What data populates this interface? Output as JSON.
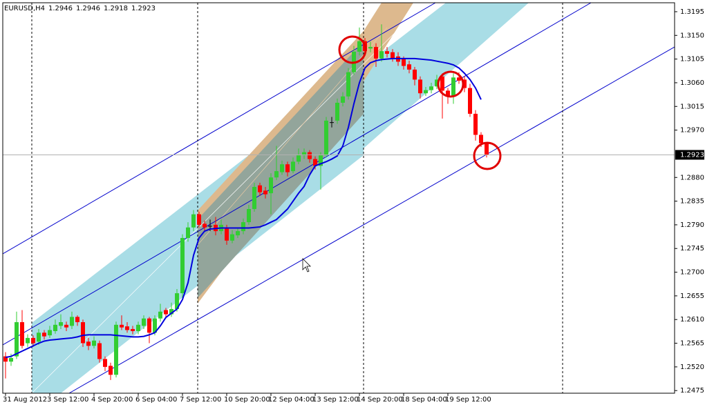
{
  "chart_data": {
    "type": "candlestick",
    "symbol": "EURUSD,H4",
    "categories": [
      "31 Aug 2012",
      null,
      null,
      null,
      null,
      null,
      null,
      null,
      "3 Sep 12:00",
      null,
      null,
      null,
      null,
      null,
      null,
      null,
      "4 Sep 20:00",
      null,
      null,
      null,
      null,
      null,
      null,
      null,
      "6 Sep 04:00",
      null,
      null,
      null,
      null,
      null,
      null,
      null,
      "7 Sep 12:00",
      null,
      null,
      null,
      null,
      null,
      null,
      null,
      "10 Sep 20:00",
      null,
      null,
      null,
      null,
      null,
      null,
      null,
      "12 Sep 04:00",
      null,
      null,
      null,
      null,
      null,
      null,
      null,
      "13 Sep 12:00",
      null,
      null,
      null,
      null,
      null,
      null,
      null,
      "14 Sep 20:00",
      null,
      null,
      null,
      null,
      null,
      null,
      null,
      "18 Sep 04:00",
      null,
      null,
      null,
      null,
      null,
      null,
      null,
      "19 Sep 12:00",
      null,
      null,
      null,
      null,
      null,
      null,
      null
    ],
    "open": [
      1.254,
      1.253,
      1.254,
      1.2605,
      1.2565,
      1.2575,
      1.2568,
      1.2585,
      1.258,
      1.2588,
      1.2598,
      1.26,
      1.2598,
      1.2615,
      1.2605,
      1.2568,
      1.256,
      1.2565,
      1.2535,
      1.2522,
      1.2505,
      1.26,
      1.2597,
      1.2592,
      1.2588,
      1.2598,
      1.2612,
      1.2585,
      1.2612,
      1.2628,
      1.262,
      1.263,
      1.266,
      1.2765,
      1.2785,
      1.281,
      1.2792,
      1.2788,
      1.279,
      1.2778,
      1.2785,
      1.276,
      1.277,
      1.2778,
      1.2795,
      1.282,
      1.2865,
      1.2855,
      1.285,
      1.288,
      1.289,
      1.2905,
      1.2892,
      1.291,
      1.2922,
      1.2928,
      1.2915,
      1.2902,
      1.2922,
      1.2985,
      1.2988,
      1.3022,
      1.3034,
      1.308,
      1.3119,
      1.3139,
      1.3125,
      1.3128,
      1.3106,
      1.312,
      1.3118,
      1.311,
      1.3105,
      1.3095,
      1.3085,
      1.3066,
      1.304,
      1.3046,
      1.3053,
      1.3072,
      1.3045,
      1.3034,
      1.307,
      1.3066,
      1.305,
      1.3001,
      1.2961,
      1.2946
    ],
    "high": [
      1.2548,
      1.2545,
      1.2625,
      1.2628,
      1.2582,
      1.258,
      1.2592,
      1.259,
      1.2598,
      1.261,
      1.262,
      1.2606,
      1.2625,
      1.2618,
      1.261,
      1.2575,
      1.2578,
      1.257,
      1.254,
      1.2528,
      1.2606,
      1.2618,
      1.2605,
      1.2598,
      1.2606,
      1.2618,
      1.2615,
      1.2618,
      1.264,
      1.2632,
      1.2642,
      1.2668,
      1.2772,
      1.2795,
      1.2818,
      1.2815,
      1.2798,
      1.28,
      1.2805,
      1.28,
      1.279,
      1.278,
      1.2785,
      1.2802,
      1.2828,
      1.287,
      1.287,
      1.2862,
      1.2888,
      1.294,
      1.2912,
      1.291,
      1.2918,
      1.2935,
      1.2935,
      1.2932,
      1.292,
      1.2928,
      1.2995,
      1.2995,
      1.303,
      1.3042,
      1.3088,
      1.313,
      1.3165,
      1.3145,
      1.3138,
      1.3135,
      1.3171,
      1.3128,
      1.3124,
      1.3118,
      1.311,
      1.3102,
      1.309,
      1.3072,
      1.3052,
      1.306,
      1.3075,
      1.3078,
      1.305,
      1.3078,
      1.308,
      1.3072,
      1.3058,
      1.3008,
      1.2966,
      1.2946
    ],
    "low": [
      1.2498,
      1.2522,
      1.2535,
      1.2555,
      1.2558,
      1.2558,
      1.2562,
      1.2572,
      1.2575,
      1.2583,
      1.2592,
      1.2588,
      1.2592,
      1.2598,
      1.2558,
      1.2552,
      1.2555,
      1.2528,
      1.2512,
      1.2495,
      1.25,
      1.259,
      1.2585,
      1.2582,
      1.2582,
      1.2592,
      1.2565,
      1.258,
      1.2606,
      1.2612,
      1.2615,
      1.2625,
      1.2648,
      1.2758,
      1.2778,
      1.2785,
      1.2778,
      1.2778,
      1.277,
      1.2772,
      1.2752,
      1.2755,
      1.2765,
      1.2772,
      1.279,
      1.2815,
      1.2845,
      1.284,
      1.281,
      1.2875,
      1.2885,
      1.2882,
      1.2888,
      1.2905,
      1.2915,
      1.2908,
      1.2895,
      1.2857,
      1.2918,
      1.2975,
      1.2982,
      1.3015,
      1.3028,
      1.3075,
      1.3112,
      1.3112,
      1.3118,
      1.309,
      1.31,
      1.3108,
      1.31,
      1.3092,
      1.3085,
      1.3078,
      1.3055,
      1.303,
      1.3035,
      1.304,
      1.3048,
      1.2992,
      1.302,
      1.302,
      1.3058,
      1.3042,
      1.2995,
      1.295,
      1.2938,
      1.2918
    ],
    "close": [
      1.253,
      1.2537,
      1.2605,
      1.256,
      1.2575,
      1.2565,
      1.2585,
      1.2578,
      1.259,
      1.26,
      1.2605,
      1.2595,
      1.2615,
      1.2605,
      1.2565,
      1.256,
      1.257,
      1.2535,
      1.252,
      1.2505,
      1.26,
      1.2595,
      1.259,
      1.2588,
      1.26,
      1.2612,
      1.2585,
      1.2612,
      1.2625,
      1.262,
      1.263,
      1.266,
      1.2765,
      1.2785,
      1.281,
      1.279,
      1.2785,
      1.2788,
      1.2778,
      1.279,
      1.276,
      1.2772,
      1.2778,
      1.2795,
      1.282,
      1.2862,
      1.2852,
      1.2848,
      1.288,
      1.2892,
      1.2905,
      1.289,
      1.291,
      1.2922,
      1.2928,
      1.2915,
      1.2902,
      1.2922,
      1.2988,
      1.2985,
      1.3022,
      1.3034,
      1.308,
      1.3119,
      1.3139,
      1.312,
      1.3128,
      1.3106,
      1.312,
      1.3115,
      1.3106,
      1.31,
      1.3092,
      1.3085,
      1.3066,
      1.304,
      1.3046,
      1.3053,
      1.3066,
      1.3045,
      1.3034,
      1.307,
      1.3064,
      1.305,
      1.3001,
      1.2961,
      1.2945,
      1.2923
    ],
    "up_color": "#32cd32",
    "down_color": "#ff0000",
    "doji_color": "#000000",
    "overlay": {
      "type": "line",
      "color": "#0000dd",
      "values": [
        1.2538,
        1.254,
        1.2545,
        1.255,
        1.2555,
        1.256,
        1.2565,
        1.2569,
        1.2571,
        1.2572,
        1.2573,
        1.2574,
        1.2575,
        1.2577,
        1.258,
        1.2581,
        1.2581,
        1.2581,
        1.2581,
        1.2581,
        1.258,
        1.2579,
        1.2578,
        1.2577,
        1.2577,
        1.2578,
        1.2581,
        1.2585,
        1.2598,
        1.2614,
        1.2622,
        1.263,
        1.2648,
        1.268,
        1.2732,
        1.2765,
        1.2778,
        1.2782,
        1.2783,
        1.2784,
        1.2784,
        1.2784,
        1.2784,
        1.2784,
        1.2784,
        1.2785,
        1.2786,
        1.279,
        1.2795,
        1.28,
        1.281,
        1.282,
        1.2835,
        1.285,
        1.2863,
        1.2885,
        1.2902,
        1.2906,
        1.291,
        1.2915,
        1.2921,
        1.294,
        1.2975,
        1.302,
        1.306,
        1.3088,
        1.3098,
        1.3102,
        1.3104,
        1.3105,
        1.3106,
        1.3106,
        1.3106,
        1.3106,
        1.3106,
        1.3105,
        1.3104,
        1.3103,
        1.3101,
        1.3099,
        1.3097,
        1.3094,
        1.3088,
        1.3078,
        1.3066,
        1.305,
        1.3028,
        null
      ]
    },
    "ylim": [
      1.247,
      1.3212
    ],
    "yticks": [
      1.3195,
      {
        "value": 1.315,
        "label": "1.3150"
      },
      1.3105,
      {
        "value": 1.306,
        "label": "1.3060"
      },
      1.3015,
      {
        "value": 1.297,
        "label": "1.2970"
      },
      {
        "value": 1.288,
        "label": "1.2880"
      },
      1.2835,
      {
        "value": 1.279,
        "label": "1.2790"
      },
      1.2745,
      {
        "value": 1.27,
        "label": "1.2700"
      },
      1.2655,
      {
        "value": 1.261,
        "label": "1.2610"
      },
      1.2565,
      {
        "value": 1.252,
        "label": "1.2520"
      },
      1.2475
    ],
    "current_price_line": true
  }
}
